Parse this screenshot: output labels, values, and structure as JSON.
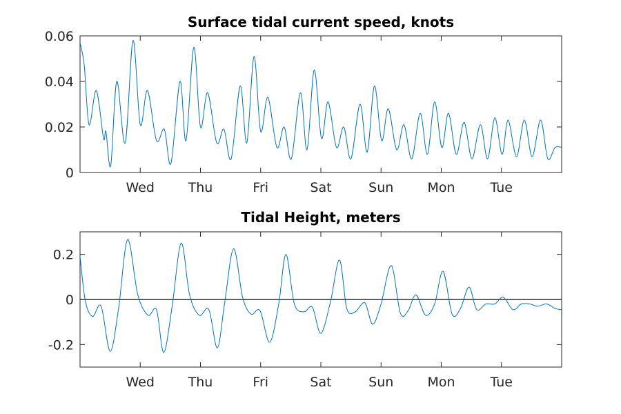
{
  "colors": {
    "series": "#0072bd",
    "zero_line": "#000000",
    "axes": "#262626"
  },
  "chart_data": [
    {
      "type": "line",
      "title": "Surface tidal current speed, knots",
      "xlabel": "",
      "ylabel": "",
      "x_unit": "days",
      "xlim": [
        0,
        8
      ],
      "ylim": [
        0,
        0.06
      ],
      "yticks": [
        0,
        0.02,
        0.04,
        0.06
      ],
      "ytick_labels": [
        "0",
        "0.02",
        "0.04",
        "0.06"
      ],
      "xticks": [
        1,
        2,
        3,
        4,
        5,
        6,
        7
      ],
      "xtick_labels": [
        "Wed",
        "Thu",
        "Fri",
        "Sat",
        "Sun",
        "Mon",
        "Tue"
      ],
      "series": [
        {
          "x": [
            0.0,
            0.07,
            0.15,
            0.27,
            0.39,
            0.43,
            0.51,
            0.61,
            0.75,
            0.88,
            1.0,
            1.12,
            1.27,
            1.4,
            1.51,
            1.66,
            1.76,
            1.89,
            2.0,
            2.12,
            2.27,
            2.39,
            2.51,
            2.66,
            2.77,
            2.89,
            3.0,
            3.12,
            3.27,
            3.39,
            3.51,
            3.66,
            3.77,
            3.89,
            4.01,
            4.12,
            4.26,
            4.38,
            4.5,
            4.65,
            4.77,
            4.89,
            5.01,
            5.12,
            5.26,
            5.38,
            5.51,
            5.65,
            5.77,
            5.89,
            6.01,
            6.12,
            6.25,
            6.38,
            6.51,
            6.65,
            6.77,
            6.89,
            7.01,
            7.11,
            7.25,
            7.38,
            7.51,
            7.65,
            7.77,
            7.89,
            8.0
          ],
          "y": [
            0.057,
            0.047,
            0.021,
            0.036,
            0.015,
            0.018,
            0.003,
            0.04,
            0.013,
            0.058,
            0.021,
            0.036,
            0.014,
            0.019,
            0.004,
            0.04,
            0.014,
            0.055,
            0.02,
            0.035,
            0.013,
            0.019,
            0.006,
            0.038,
            0.013,
            0.051,
            0.018,
            0.033,
            0.011,
            0.02,
            0.006,
            0.035,
            0.01,
            0.045,
            0.015,
            0.031,
            0.011,
            0.02,
            0.006,
            0.03,
            0.009,
            0.038,
            0.014,
            0.028,
            0.01,
            0.021,
            0.006,
            0.026,
            0.008,
            0.031,
            0.011,
            0.026,
            0.008,
            0.022,
            0.006,
            0.021,
            0.006,
            0.024,
            0.008,
            0.023,
            0.007,
            0.023,
            0.007,
            0.023,
            0.006,
            0.011,
            0.011
          ]
        }
      ]
    },
    {
      "type": "line",
      "title": "Tidal Height, meters",
      "xlabel": "",
      "ylabel": "",
      "x_unit": "days",
      "xlim": [
        0,
        8
      ],
      "ylim": [
        -0.3,
        0.3
      ],
      "yticks": [
        -0.2,
        0,
        0.2
      ],
      "ytick_labels": [
        "-0.2",
        "0",
        "0.2"
      ],
      "xticks": [
        1,
        2,
        3,
        4,
        5,
        6,
        7
      ],
      "xtick_labels": [
        "Wed",
        "Thu",
        "Fri",
        "Sat",
        "Sun",
        "Mon",
        "Tue"
      ],
      "reference_line_y": 0,
      "series": [
        {
          "x": [
            0.0,
            0.09,
            0.21,
            0.35,
            0.5,
            0.64,
            0.79,
            0.96,
            1.13,
            1.27,
            1.39,
            1.53,
            1.68,
            1.82,
            1.98,
            2.14,
            2.28,
            2.4,
            2.55,
            2.7,
            2.84,
            2.99,
            3.15,
            3.3,
            3.42,
            3.56,
            3.72,
            3.86,
            4.0,
            4.16,
            4.31,
            4.43,
            4.57,
            4.73,
            4.86,
            5.0,
            5.17,
            5.32,
            5.45,
            5.58,
            5.74,
            5.89,
            6.03,
            6.18,
            6.32,
            6.46,
            6.59,
            6.74,
            6.89,
            7.03,
            7.19,
            7.33,
            7.47,
            7.6,
            7.75,
            7.89,
            8.0
          ],
          "y": [
            0.19,
            -0.01,
            -0.075,
            -0.03,
            -0.23,
            -0.04,
            0.265,
            0.02,
            -0.07,
            -0.045,
            -0.235,
            -0.03,
            0.25,
            0.02,
            -0.07,
            -0.045,
            -0.215,
            -0.02,
            0.225,
            0.01,
            -0.065,
            -0.05,
            -0.19,
            -0.02,
            0.2,
            -0.02,
            -0.055,
            -0.035,
            -0.15,
            -0.01,
            0.175,
            -0.04,
            -0.055,
            -0.015,
            -0.11,
            -0.02,
            0.15,
            -0.06,
            -0.05,
            0.02,
            -0.07,
            -0.02,
            0.125,
            -0.065,
            -0.04,
            0.055,
            -0.045,
            -0.02,
            -0.02,
            0.01,
            -0.045,
            -0.02,
            -0.02,
            -0.03,
            -0.02,
            -0.04,
            -0.045
          ]
        }
      ]
    }
  ]
}
